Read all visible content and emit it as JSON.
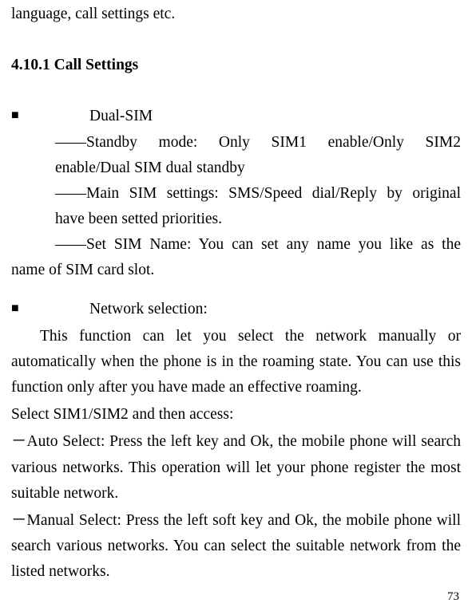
{
  "top_fragment": "language, call settings etc.",
  "heading": "4.10.1    Call Settings",
  "bullet1_title": "Dual-SIM",
  "b1_item1_line1": "――Standby    mode:    Only    SIM1    enable/Only    SIM2",
  "b1_item1_line2": "enable/Dual SIM dual standby",
  "b1_item2_line1": "――Main SIM settings: SMS/Speed dial/Reply by original",
  "b1_item2_line2": "have been setted priorities.",
  "b1_item3_line1": "――Set SIM Name: You can set any name you like as the",
  "b1_item3_wrap": "name of SIM card slot.",
  "bullet2_title": "Network selection:",
  "b2_para": "This function can let you select the network manually or automatically when the phone is in the roaming state. You can use this function only after you have made an effective roaming.",
  "b2_line_select": "Select SIM1/SIM2 and then access:",
  "b2_auto": "－Auto Select: Press the left key and Ok, the mobile phone will search various networks. This operation will let your phone register the most suitable network.",
  "b2_manual": "－Manual Select: Press the left soft key and Ok, the mobile phone will search various networks. You can select the suitable network from the listed networks.",
  "page_number": "73",
  "bullet_glyph": "■"
}
